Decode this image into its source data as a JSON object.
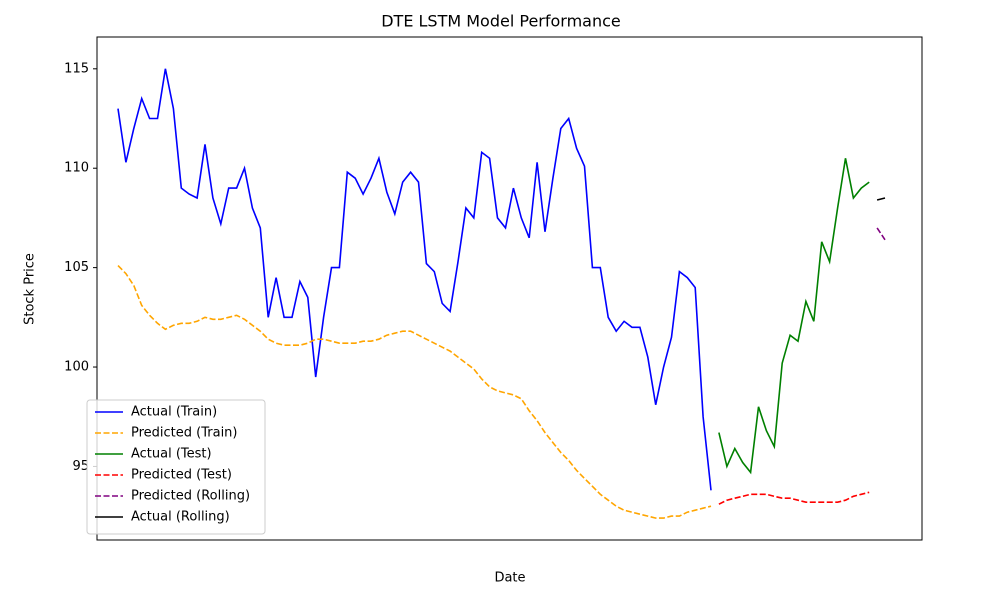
{
  "chart_data": {
    "type": "line",
    "title": "DTE LSTM Model Performance",
    "x_label": "Date",
    "y_label": "Stock Price",
    "categories": [
      null,
      null,
      null,
      null,
      null,
      null,
      null,
      null,
      null,
      null,
      null,
      null,
      null,
      null,
      null,
      null,
      null,
      null,
      null,
      null,
      null,
      null,
      null,
      null,
      null,
      null,
      null,
      null,
      null,
      null,
      null,
      null,
      null,
      null,
      null,
      null,
      null,
      null,
      null,
      null,
      null,
      null,
      null,
      null,
      null,
      null,
      null,
      null,
      null,
      null,
      null,
      null,
      null,
      null,
      null,
      null,
      null,
      null,
      null,
      null,
      null,
      null,
      null,
      null,
      null,
      null,
      null,
      null,
      null,
      null,
      null,
      null,
      null,
      null,
      null,
      null,
      null,
      null,
      null,
      null,
      null,
      null,
      null,
      null,
      null,
      null,
      null,
      null,
      null,
      null,
      null,
      null,
      null,
      null,
      null,
      null,
      null,
      null
    ],
    "ylim": [
      91.3,
      116.6
    ],
    "yticks": [
      95,
      100,
      105,
      110,
      115
    ],
    "grid": false,
    "legend": "lower left",
    "series": [
      {
        "name": "Actual (Train)",
        "color": "#0000ff",
        "linestyle": "solid",
        "values": [
          113,
          110.3,
          112,
          113.5,
          112.5,
          112.5,
          115,
          113,
          109,
          108.7,
          108.5,
          111.2,
          108.5,
          107.2,
          109,
          109,
          110,
          108,
          107,
          102.5,
          104.5,
          102.5,
          102.5,
          104.3,
          103.5,
          99.5,
          102.5,
          105,
          105,
          109.8,
          109.5,
          108.7,
          109.5,
          110.5,
          108.8,
          107.7,
          109.3,
          109.8,
          109.3,
          105.2,
          104.8,
          103.2,
          102.8,
          105.3,
          108,
          107.5,
          110.8,
          110.5,
          107.5,
          107,
          109,
          107.5,
          106.5,
          110.3,
          106.8,
          109.5,
          112,
          112.5,
          111,
          110.1,
          105,
          105,
          102.5,
          101.8,
          102.3,
          102,
          102,
          100.5,
          98.1,
          100,
          101.5,
          104.8,
          104.5,
          104,
          97.5,
          93.8,
          null,
          null,
          null,
          null,
          null,
          null,
          null,
          null,
          null,
          null,
          null,
          null,
          null,
          null,
          null,
          null,
          null,
          null,
          null,
          null,
          null,
          null
        ]
      },
      {
        "name": "Predicted (Train)",
        "color": "#ffa500",
        "linestyle": "dashed",
        "values": [
          105.1,
          104.7,
          104.1,
          103.1,
          102.6,
          102.2,
          101.9,
          102.1,
          102.2,
          102.2,
          102.3,
          102.5,
          102.4,
          102.4,
          102.5,
          102.6,
          102.4,
          102.1,
          101.8,
          101.4,
          101.2,
          101.1,
          101.1,
          101.1,
          101.2,
          101.4,
          101.4,
          101.3,
          101.2,
          101.2,
          101.2,
          101.3,
          101.3,
          101.4,
          101.6,
          101.7,
          101.8,
          101.8,
          101.6,
          101.4,
          101.2,
          101,
          100.8,
          100.5,
          100.2,
          99.9,
          99.4,
          99,
          98.8,
          98.7,
          98.6,
          98.4,
          97.8,
          97.3,
          96.7,
          96.2,
          95.7,
          95.3,
          94.8,
          94.4,
          94,
          93.6,
          93.3,
          93,
          92.8,
          92.7,
          92.6,
          92.5,
          92.4,
          92.4,
          92.5,
          92.5,
          92.7,
          92.8,
          92.9,
          93,
          null,
          null,
          null,
          null,
          null,
          null,
          null,
          null,
          null,
          null,
          null,
          null,
          null,
          null,
          null,
          null,
          null,
          null,
          null,
          null,
          null,
          null
        ]
      },
      {
        "name": "Actual (Test)",
        "color": "#008000",
        "linestyle": "solid",
        "values": [
          null,
          null,
          null,
          null,
          null,
          null,
          null,
          null,
          null,
          null,
          null,
          null,
          null,
          null,
          null,
          null,
          null,
          null,
          null,
          null,
          null,
          null,
          null,
          null,
          null,
          null,
          null,
          null,
          null,
          null,
          null,
          null,
          null,
          null,
          null,
          null,
          null,
          null,
          null,
          null,
          null,
          null,
          null,
          null,
          null,
          null,
          null,
          null,
          null,
          null,
          null,
          null,
          null,
          null,
          null,
          null,
          null,
          null,
          null,
          null,
          null,
          null,
          null,
          null,
          null,
          null,
          null,
          null,
          null,
          null,
          null,
          null,
          null,
          null,
          null,
          null,
          96.7,
          95,
          95.9,
          95.2,
          94.7,
          98,
          96.8,
          96,
          100.2,
          101.6,
          101.3,
          103.3,
          102.3,
          106.3,
          105.3,
          108,
          110.5,
          108.5,
          109,
          109.3,
          null,
          null
        ]
      },
      {
        "name": "Predicted (Test)",
        "color": "#ff0000",
        "linestyle": "dashed",
        "values": [
          null,
          null,
          null,
          null,
          null,
          null,
          null,
          null,
          null,
          null,
          null,
          null,
          null,
          null,
          null,
          null,
          null,
          null,
          null,
          null,
          null,
          null,
          null,
          null,
          null,
          null,
          null,
          null,
          null,
          null,
          null,
          null,
          null,
          null,
          null,
          null,
          null,
          null,
          null,
          null,
          null,
          null,
          null,
          null,
          null,
          null,
          null,
          null,
          null,
          null,
          null,
          null,
          null,
          null,
          null,
          null,
          null,
          null,
          null,
          null,
          null,
          null,
          null,
          null,
          null,
          null,
          null,
          null,
          null,
          null,
          null,
          null,
          null,
          null,
          null,
          null,
          93.1,
          93.3,
          93.4,
          93.5,
          93.6,
          93.6,
          93.6,
          93.5,
          93.4,
          93.4,
          93.3,
          93.2,
          93.2,
          93.2,
          93.2,
          93.2,
          93.3,
          93.5,
          93.6,
          93.7,
          null,
          null
        ]
      },
      {
        "name": "Predicted (Rolling)",
        "color": "#800080",
        "linestyle": "dashed",
        "values": [
          null,
          null,
          null,
          null,
          null,
          null,
          null,
          null,
          null,
          null,
          null,
          null,
          null,
          null,
          null,
          null,
          null,
          null,
          null,
          null,
          null,
          null,
          null,
          null,
          null,
          null,
          null,
          null,
          null,
          null,
          null,
          null,
          null,
          null,
          null,
          null,
          null,
          null,
          null,
          null,
          null,
          null,
          null,
          null,
          null,
          null,
          null,
          null,
          null,
          null,
          null,
          null,
          null,
          null,
          null,
          null,
          null,
          null,
          null,
          null,
          null,
          null,
          null,
          null,
          null,
          null,
          null,
          null,
          null,
          null,
          null,
          null,
          null,
          null,
          null,
          null,
          null,
          null,
          null,
          null,
          null,
          null,
          null,
          null,
          null,
          null,
          null,
          null,
          null,
          null,
          null,
          null,
          null,
          null,
          null,
          null,
          107,
          106.4
        ]
      },
      {
        "name": "Actual (Rolling)",
        "color": "#000000",
        "linestyle": "solid",
        "values": [
          null,
          null,
          null,
          null,
          null,
          null,
          null,
          null,
          null,
          null,
          null,
          null,
          null,
          null,
          null,
          null,
          null,
          null,
          null,
          null,
          null,
          null,
          null,
          null,
          null,
          null,
          null,
          null,
          null,
          null,
          null,
          null,
          null,
          null,
          null,
          null,
          null,
          null,
          null,
          null,
          null,
          null,
          null,
          null,
          null,
          null,
          null,
          null,
          null,
          null,
          null,
          null,
          null,
          null,
          null,
          null,
          null,
          null,
          null,
          null,
          null,
          null,
          null,
          null,
          null,
          null,
          null,
          null,
          null,
          null,
          null,
          null,
          null,
          null,
          null,
          null,
          null,
          null,
          null,
          null,
          null,
          null,
          null,
          null,
          null,
          null,
          null,
          null,
          null,
          null,
          null,
          null,
          null,
          null,
          null,
          null,
          108.4,
          108.5
        ]
      }
    ]
  }
}
